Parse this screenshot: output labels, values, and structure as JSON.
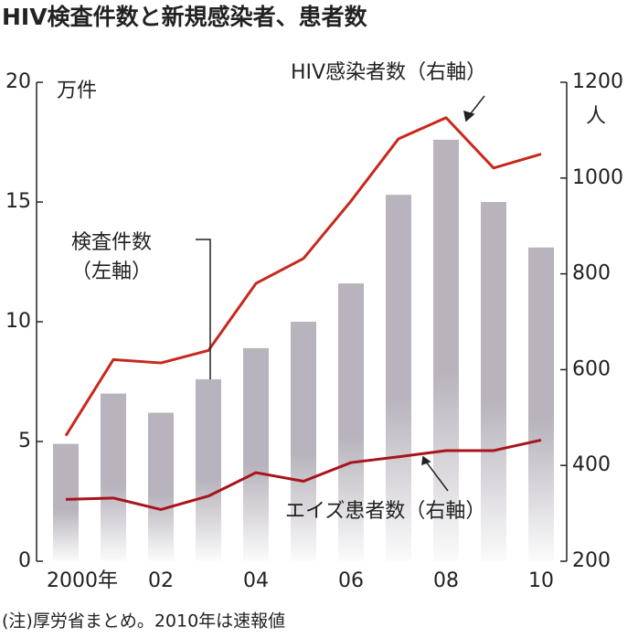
{
  "chart_data": {
    "type": "bar-line",
    "title": "HIV検査件数と新規感染者、患者数",
    "y_unit": "万件",
    "y2_unit": "人",
    "note": "(注)厚労省まとめ。2010年は速報値",
    "categories": [
      "2000年",
      null,
      "02",
      null,
      "04",
      null,
      "06",
      null,
      "08",
      null,
      "10"
    ],
    "ylim": [
      0,
      20
    ],
    "yticks": [
      0,
      5,
      10,
      15,
      20
    ],
    "y2lim": [
      200,
      1200
    ],
    "y2ticks": [
      200,
      400,
      600,
      800,
      1000,
      1200
    ],
    "series": [
      {
        "name": "検査件数（左軸）",
        "type": "bar",
        "color": "#b8b3bc",
        "values": [
          4.9,
          7.0,
          6.2,
          7.6,
          8.9,
          10.0,
          11.6,
          15.3,
          17.6,
          15.0,
          13.1
        ]
      },
      {
        "name": "HIV感染者数（右軸）",
        "type": "line",
        "axis": "y2",
        "color": "#c8281c",
        "values": [
          462,
          621,
          614,
          640,
          780,
          832,
          952,
          1082,
          1126,
          1021,
          1050
        ]
      },
      {
        "name": "エイズ患者数（右軸）",
        "type": "line",
        "axis": "y2",
        "color": "#a8141c",
        "values": [
          329,
          332,
          308,
          336,
          385,
          367,
          406,
          418,
          431,
          431,
          453
        ]
      }
    ]
  }
}
